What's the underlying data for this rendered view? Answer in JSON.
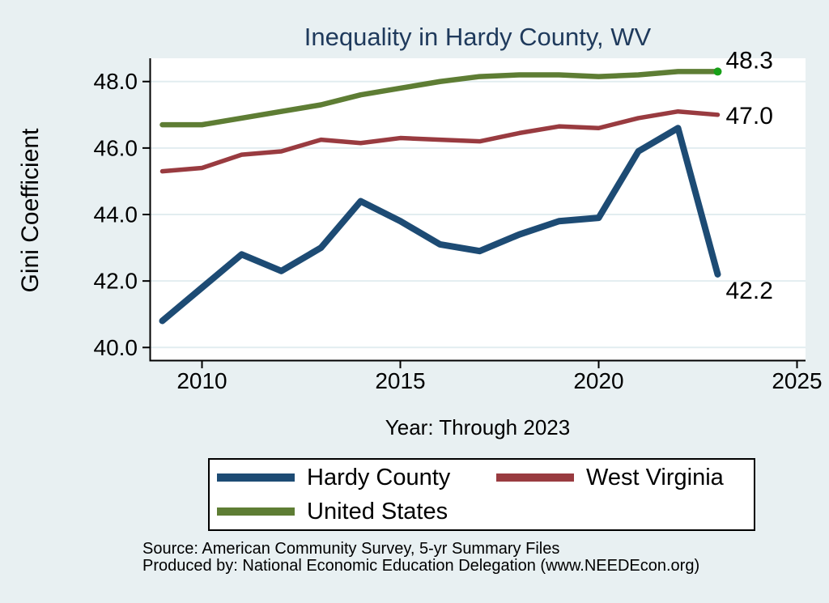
{
  "figure": {
    "source_line1": "Source: American Community Survey, 5-yr Summary Files",
    "source_line2": "Produced by: National Economic Education Delegation (www.NEEDEcon.org)"
  },
  "chart_data": {
    "type": "line",
    "title": "Inequality in Hardy County, WV",
    "xlabel": "Year: Through 2023",
    "ylabel": "Gini Coefficient",
    "x": [
      2009,
      2010,
      2011,
      2012,
      2013,
      2014,
      2015,
      2016,
      2017,
      2018,
      2019,
      2020,
      2021,
      2022,
      2023
    ],
    "series": [
      {
        "name": "Hardy County",
        "color": "#1d4b74",
        "line_width": 8,
        "values": [
          40.8,
          41.8,
          42.8,
          42.3,
          43.0,
          44.4,
          43.8,
          43.1,
          42.9,
          43.4,
          43.8,
          43.9,
          45.9,
          46.6,
          42.2
        ],
        "end_label": "42.2",
        "end_label_dy": 30
      },
      {
        "name": "West Virginia",
        "color": "#993b40",
        "line_width": 5.5,
        "values": [
          45.3,
          45.4,
          45.8,
          45.9,
          46.25,
          46.15,
          46.3,
          46.25,
          46.2,
          46.45,
          46.65,
          46.6,
          46.9,
          47.1,
          47.0
        ],
        "end_label": "47.0",
        "end_label_dy": 11
      },
      {
        "name": "United States",
        "color": "#5e7d34",
        "line_width": 6.5,
        "values": [
          46.7,
          46.7,
          46.9,
          47.1,
          47.3,
          47.6,
          47.8,
          48.0,
          48.15,
          48.2,
          48.2,
          48.15,
          48.2,
          48.3,
          48.3
        ],
        "end_label": "48.3",
        "end_label_dy": -4,
        "end_marker_color": "#18a018"
      }
    ],
    "x_ticks": [
      2010,
      2015,
      2020,
      2025
    ],
    "y_ticks": [
      40.0,
      42.0,
      44.0,
      46.0,
      48.0
    ],
    "xlim": [
      2008.7,
      2025.2
    ],
    "ylim": [
      39.6,
      48.8
    ],
    "grid": "horizontal",
    "legend_position": "bottom"
  },
  "colors": {
    "background": "#e8f0f2",
    "plot_background": "#ffffff",
    "gridline": "#e2edf0",
    "axis": "#000000",
    "title": "#1f3a5c",
    "text": "#000000"
  }
}
